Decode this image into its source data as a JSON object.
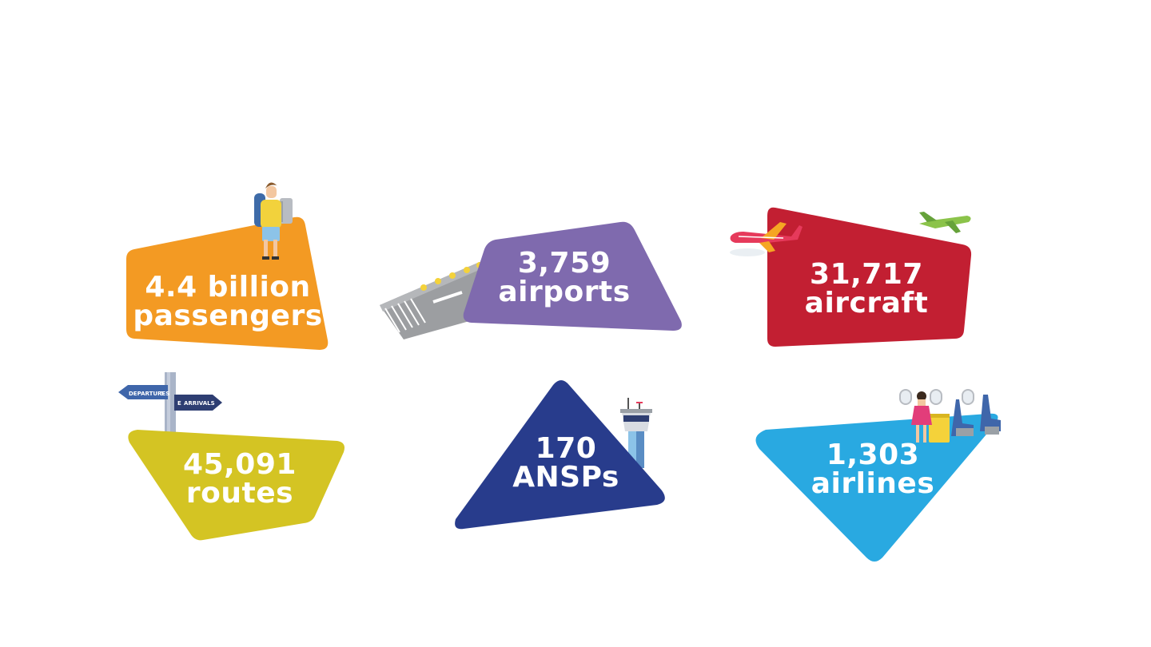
{
  "stats": [
    {
      "id": "passengers",
      "value": "4.4 billion",
      "unit": "passengers",
      "color": "#F39A23"
    },
    {
      "id": "airports",
      "value": "3,759",
      "unit": "airports",
      "color": "#7F6AAE"
    },
    {
      "id": "aircraft",
      "value": "31,717",
      "unit": "aircraft",
      "color": "#C21F32"
    },
    {
      "id": "routes",
      "value": "45,091",
      "unit": "routes",
      "color": "#D4C423"
    },
    {
      "id": "ansps",
      "value": "170",
      "unit": "ANSPs",
      "color": "#283C8C"
    },
    {
      "id": "airlines",
      "value": "1,303",
      "unit": "airlines",
      "color": "#29A9E1"
    }
  ],
  "signpost": {
    "left_sign": "DEPARTURES",
    "left_sign_badge": "3",
    "right_sign": "ARRIVALS",
    "right_sign_badge": "E"
  },
  "icons": [
    "backpacker-icon",
    "runway-icon",
    "red-airplane-icon",
    "green-airplane-icon",
    "signpost-icon",
    "control-tower-icon",
    "flight-attendant-cabin-icon"
  ]
}
